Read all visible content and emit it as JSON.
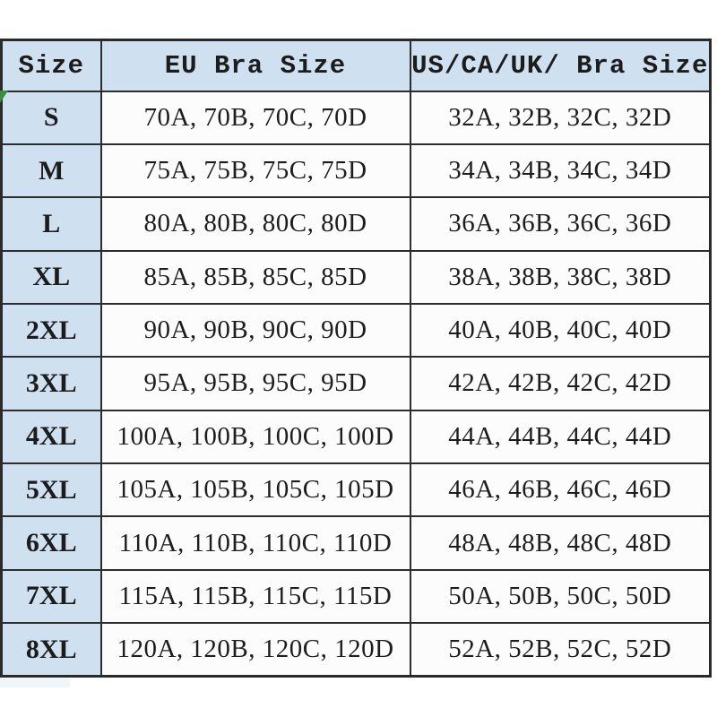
{
  "chart_data": {
    "type": "table",
    "columns": [
      "Size",
      "EU Bra Size",
      "US/CA/UK/ Bra Size"
    ],
    "rows": [
      [
        "S",
        "70A, 70B, 70C, 70D",
        "32A, 32B, 32C, 32D"
      ],
      [
        "M",
        "75A, 75B, 75C, 75D",
        "34A, 34B, 34C, 34D"
      ],
      [
        "L",
        "80A, 80B, 80C, 80D",
        "36A, 36B, 36C, 36D"
      ],
      [
        "XL",
        "85A, 85B, 85C, 85D",
        "38A, 38B, 38C, 38D"
      ],
      [
        "2XL",
        "90A, 90B, 90C, 90D",
        "40A, 40B, 40C, 40D"
      ],
      [
        "3XL",
        "95A, 95B, 95C, 95D",
        "42A, 42B, 42C, 42D"
      ],
      [
        "4XL",
        "100A, 100B, 100C, 100D",
        "44A, 44B, 44C, 44D"
      ],
      [
        "5XL",
        "105A, 105B, 105C, 105D",
        "46A, 46B, 46C, 46D"
      ],
      [
        "6XL",
        "110A, 110B, 110C, 110D",
        "48A, 48B, 48C, 48D"
      ],
      [
        "7XL",
        "115A, 115B, 115C, 115D",
        "50A, 50B, 50C, 50D"
      ],
      [
        "8XL",
        "120A, 120B, 120C, 120D",
        "52A, 52B, 52C, 52D"
      ]
    ],
    "layout": {
      "grid": true,
      "header_position": "top"
    }
  },
  "colors": {
    "header_bg": "#cfe0f1",
    "size_column_bg": "#cfe0f1",
    "data_cell_bg": "#fcfcfc",
    "border": "#2d2d2d",
    "text": "#1c1c1c",
    "marker_green": "#3c8c40",
    "page_bg": "#ffffff"
  },
  "icons": {
    "green_marker": "triangle-wedge"
  }
}
